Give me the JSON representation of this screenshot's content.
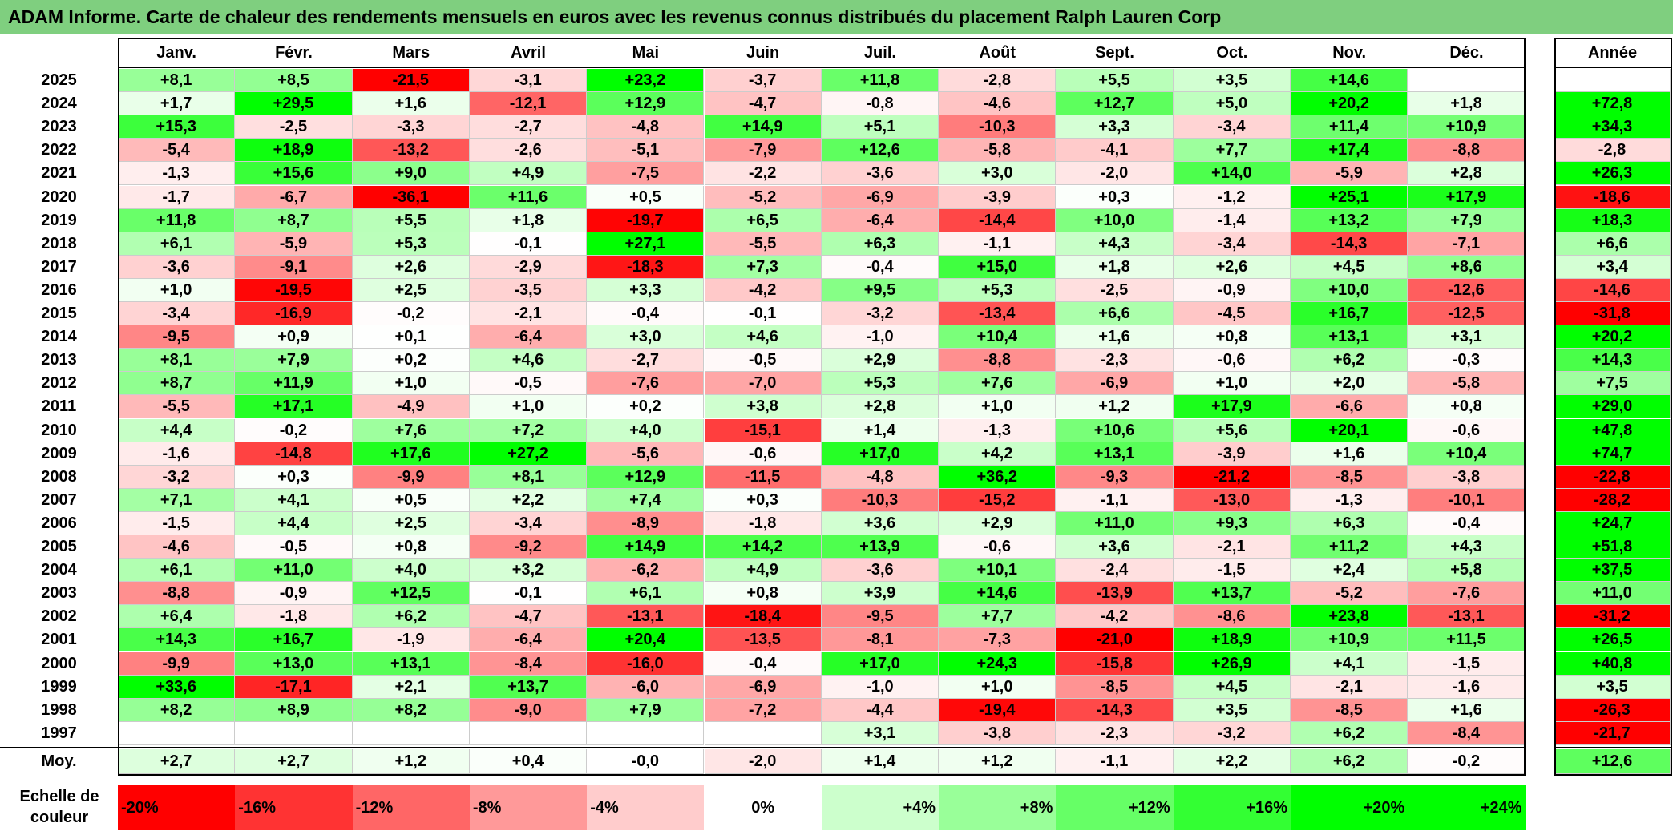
{
  "title": "ADAM Informe. Carte de chaleur des rendements mensuels en euros avec les revenus connus distribués du placement Ralph Lauren Corp",
  "chart_data": {
    "type": "heatmap",
    "columns": [
      "Janv.",
      "Févr.",
      "Mars",
      "Avril",
      "Mai",
      "Juin",
      "Juil.",
      "Août",
      "Sept.",
      "Oct.",
      "Nov.",
      "Déc."
    ],
    "year_header": "Année",
    "rows": [
      {
        "year": "2025",
        "values": [
          "+8,1",
          "+8,5",
          "-21,5",
          "-3,1",
          "+23,2",
          "-3,7",
          "+11,8",
          "-2,8",
          "+5,5",
          "+3,5",
          "+14,6",
          ""
        ],
        "annual": ""
      },
      {
        "year": "2024",
        "values": [
          "+1,7",
          "+29,5",
          "+1,6",
          "-12,1",
          "+12,9",
          "-4,7",
          "-0,8",
          "-4,6",
          "+12,7",
          "+5,0",
          "+20,2",
          "+1,8"
        ],
        "annual": "+72,8"
      },
      {
        "year": "2023",
        "values": [
          "+15,3",
          "-2,5",
          "-3,3",
          "-2,7",
          "-4,8",
          "+14,9",
          "+5,1",
          "-10,3",
          "+3,3",
          "-3,4",
          "+11,4",
          "+10,9"
        ],
        "annual": "+34,3"
      },
      {
        "year": "2022",
        "values": [
          "-5,4",
          "+18,9",
          "-13,2",
          "-2,6",
          "-5,1",
          "-7,9",
          "+12,6",
          "-5,8",
          "-4,1",
          "+7,7",
          "+17,4",
          "-8,8"
        ],
        "annual": "-2,8"
      },
      {
        "year": "2021",
        "values": [
          "-1,3",
          "+15,6",
          "+9,0",
          "+4,9",
          "-7,5",
          "-2,2",
          "-3,6",
          "+3,0",
          "-2,0",
          "+14,0",
          "-5,9",
          "+2,8"
        ],
        "annual": "+26,3"
      },
      {
        "year": "2020",
        "values": [
          "-1,7",
          "-6,7",
          "-36,1",
          "+11,6",
          "+0,5",
          "-5,2",
          "-6,9",
          "-3,9",
          "+0,3",
          "-1,2",
          "+25,1",
          "+17,9"
        ],
        "annual": "-18,6"
      },
      {
        "year": "2019",
        "values": [
          "+11,8",
          "+8,7",
          "+5,5",
          "+1,8",
          "-19,7",
          "+6,5",
          "-6,4",
          "-14,4",
          "+10,0",
          "-1,4",
          "+13,2",
          "+7,9"
        ],
        "annual": "+18,3"
      },
      {
        "year": "2018",
        "values": [
          "+6,1",
          "-5,9",
          "+5,3",
          "-0,1",
          "+27,1",
          "-5,5",
          "+6,3",
          "-1,1",
          "+4,3",
          "-3,4",
          "-14,3",
          "-7,1"
        ],
        "annual": "+6,6"
      },
      {
        "year": "2017",
        "values": [
          "-3,6",
          "-9,1",
          "+2,6",
          "-2,9",
          "-18,3",
          "+7,3",
          "-0,4",
          "+15,0",
          "+1,8",
          "+2,6",
          "+4,5",
          "+8,6"
        ],
        "annual": "+3,4"
      },
      {
        "year": "2016",
        "values": [
          "+1,0",
          "-19,5",
          "+2,5",
          "-3,5",
          "+3,3",
          "-4,2",
          "+9,5",
          "+5,3",
          "-2,5",
          "-0,9",
          "+10,0",
          "-12,6"
        ],
        "annual": "-14,6"
      },
      {
        "year": "2015",
        "values": [
          "-3,4",
          "-16,9",
          "-0,2",
          "-2,1",
          "-0,4",
          "-0,1",
          "-3,2",
          "-13,4",
          "+6,6",
          "-4,5",
          "+16,7",
          "-12,5"
        ],
        "annual": "-31,8"
      },
      {
        "year": "2014",
        "values": [
          "-9,5",
          "+0,9",
          "+0,1",
          "-6,4",
          "+3,0",
          "+4,6",
          "-1,0",
          "+10,4",
          "+1,6",
          "+0,8",
          "+13,1",
          "+3,1"
        ],
        "annual": "+20,2"
      },
      {
        "year": "2013",
        "values": [
          "+8,1",
          "+7,9",
          "+0,2",
          "+4,6",
          "-2,7",
          "-0,5",
          "+2,9",
          "-8,8",
          "-2,3",
          "-0,6",
          "+6,2",
          "-0,3"
        ],
        "annual": "+14,3"
      },
      {
        "year": "2012",
        "values": [
          "+8,7",
          "+11,9",
          "+1,0",
          "-0,5",
          "-7,6",
          "-7,0",
          "+5,3",
          "+7,6",
          "-6,9",
          "+1,0",
          "+2,0",
          "-5,8"
        ],
        "annual": "+7,5"
      },
      {
        "year": "2011",
        "values": [
          "-5,5",
          "+17,1",
          "-4,9",
          "+1,0",
          "+0,2",
          "+3,8",
          "+2,8",
          "+1,0",
          "+1,2",
          "+17,9",
          "-6,6",
          "+0,8"
        ],
        "annual": "+29,0"
      },
      {
        "year": "2010",
        "values": [
          "+4,4",
          "-0,2",
          "+7,6",
          "+7,2",
          "+4,0",
          "-15,1",
          "+1,4",
          "-1,3",
          "+10,6",
          "+5,6",
          "+20,1",
          "-0,6"
        ],
        "annual": "+47,8"
      },
      {
        "year": "2009",
        "values": [
          "-1,6",
          "-14,8",
          "+17,6",
          "+27,2",
          "-5,6",
          "-0,6",
          "+17,0",
          "+4,2",
          "+13,1",
          "-3,9",
          "+1,6",
          "+10,4"
        ],
        "annual": "+74,7"
      },
      {
        "year": "2008",
        "values": [
          "-3,2",
          "+0,3",
          "-9,9",
          "+8,1",
          "+12,9",
          "-11,5",
          "-4,8",
          "+36,2",
          "-9,3",
          "-21,2",
          "-8,5",
          "-3,8"
        ],
        "annual": "-22,8"
      },
      {
        "year": "2007",
        "values": [
          "+7,1",
          "+4,1",
          "+0,5",
          "+2,2",
          "+7,4",
          "+0,3",
          "-10,3",
          "-15,2",
          "-1,1",
          "-13,0",
          "-1,3",
          "-10,1"
        ],
        "annual": "-28,2"
      },
      {
        "year": "2006",
        "values": [
          "-1,5",
          "+4,4",
          "+2,5",
          "-3,4",
          "-8,9",
          "-1,8",
          "+3,6",
          "+2,9",
          "+11,0",
          "+9,3",
          "+6,3",
          "-0,4"
        ],
        "annual": "+24,7"
      },
      {
        "year": "2005",
        "values": [
          "-4,6",
          "-0,5",
          "+0,8",
          "-9,2",
          "+14,9",
          "+14,2",
          "+13,9",
          "-0,6",
          "+3,6",
          "-2,1",
          "+11,2",
          "+4,3"
        ],
        "annual": "+51,8"
      },
      {
        "year": "2004",
        "values": [
          "+6,1",
          "+11,0",
          "+4,0",
          "+3,2",
          "-6,2",
          "+4,9",
          "-3,6",
          "+10,1",
          "-2,4",
          "-1,5",
          "+2,4",
          "+5,8"
        ],
        "annual": "+37,5"
      },
      {
        "year": "2003",
        "values": [
          "-8,8",
          "-0,9",
          "+12,5",
          "-0,1",
          "+6,1",
          "+0,8",
          "+3,9",
          "+14,6",
          "-13,9",
          "+13,7",
          "-5,2",
          "-7,6"
        ],
        "annual": "+11,0"
      },
      {
        "year": "2002",
        "values": [
          "+6,4",
          "-1,8",
          "+6,2",
          "-4,7",
          "-13,1",
          "-18,4",
          "-9,5",
          "+7,7",
          "-4,2",
          "-8,6",
          "+23,8",
          "-13,1"
        ],
        "annual": "-31,2"
      },
      {
        "year": "2001",
        "values": [
          "+14,3",
          "+16,7",
          "-1,9",
          "-6,4",
          "+20,4",
          "-13,5",
          "-8,1",
          "-7,3",
          "-21,0",
          "+18,9",
          "+10,9",
          "+11,5"
        ],
        "annual": "+26,5"
      },
      {
        "year": "2000",
        "values": [
          "-9,9",
          "+13,0",
          "+13,1",
          "-8,4",
          "-16,0",
          "-0,4",
          "+17,0",
          "+24,3",
          "-15,8",
          "+26,9",
          "+4,1",
          "-1,5"
        ],
        "annual": "+40,8"
      },
      {
        "year": "1999",
        "values": [
          "+33,6",
          "-17,1",
          "+2,1",
          "+13,7",
          "-6,0",
          "-6,9",
          "-1,0",
          "+1,0",
          "-8,5",
          "+4,5",
          "-2,1",
          "-1,6"
        ],
        "annual": "+3,5"
      },
      {
        "year": "1998",
        "values": [
          "+8,2",
          "+8,9",
          "+8,2",
          "-9,0",
          "+7,9",
          "-7,2",
          "-4,4",
          "-19,4",
          "-14,3",
          "+3,5",
          "-8,5",
          "+1,6"
        ],
        "annual": "-26,3"
      },
      {
        "year": "1997",
        "values": [
          "",
          "",
          "",
          "",
          "",
          "",
          "+3,1",
          "-3,8",
          "-2,3",
          "-3,2",
          "+6,2",
          "-8,4"
        ],
        "annual": "-21,7"
      }
    ],
    "average": {
      "label": "Moy.",
      "values": [
        "+2,7",
        "+2,7",
        "+1,2",
        "+0,4",
        "-0,0",
        "-2,0",
        "+1,4",
        "+1,2",
        "-1,1",
        "+2,2",
        "+6,2",
        "-0,2"
      ],
      "annual": "+12,6"
    },
    "scale": {
      "label_line1": "Echelle de",
      "label_line2": "couleur",
      "steps": [
        {
          "label": "-20%",
          "value": -20
        },
        {
          "label": "-16%",
          "value": -16
        },
        {
          "label": "-12%",
          "value": -12
        },
        {
          "label": "-8%",
          "value": -8
        },
        {
          "label": "-4%",
          "value": -4
        },
        {
          "label": "0%",
          "value": 0
        },
        {
          "label": "+4%",
          "value": 4
        },
        {
          "label": "+8%",
          "value": 8
        },
        {
          "label": "+12%",
          "value": 12
        },
        {
          "label": "+16%",
          "value": 16
        },
        {
          "label": "+20%",
          "value": 20
        },
        {
          "label": "+24%",
          "value": 24
        }
      ]
    },
    "colors": {
      "negative_max": "#ff0000",
      "neutral": "#ffffff",
      "positive_max": "#00ff00"
    }
  }
}
